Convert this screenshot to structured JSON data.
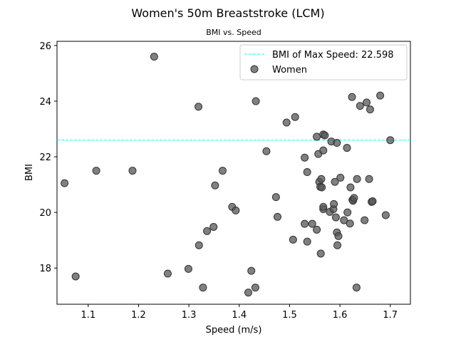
{
  "chart_data": {
    "type": "scatter",
    "title": "Women's 50m Breaststroke (LCM)",
    "subtitle": "BMI vs. Speed",
    "xlabel": "Speed (m/s)",
    "ylabel": "BMI",
    "xlim": [
      1.038,
      1.74
    ],
    "ylim": [
      16.7,
      26.15
    ],
    "xticks": [
      1.1,
      1.2,
      1.3,
      1.4,
      1.5,
      1.6,
      1.7
    ],
    "xtick_labels": [
      "1.1",
      "1.2",
      "1.3",
      "1.4",
      "1.5",
      "1.6",
      "1.7"
    ],
    "yticks": [
      18,
      20,
      22,
      24,
      26
    ],
    "ytick_labels": [
      "18",
      "20",
      "22",
      "24",
      "26"
    ],
    "grid": false,
    "legend_position": "top-right",
    "colors": {
      "points": "#555555",
      "hline": "#00ffff"
    },
    "hline": {
      "y": 22.598,
      "label": "BMI of Max Speed: 22.598"
    },
    "series": [
      {
        "name": "Women",
        "points": [
          [
            1.053,
            21.05
          ],
          [
            1.075,
            17.7
          ],
          [
            1.116,
            21.5
          ],
          [
            1.188,
            21.5
          ],
          [
            1.231,
            25.6
          ],
          [
            1.258,
            17.8
          ],
          [
            1.299,
            17.97
          ],
          [
            1.319,
            23.8
          ],
          [
            1.32,
            18.82
          ],
          [
            1.328,
            17.3
          ],
          [
            1.336,
            19.33
          ],
          [
            1.349,
            19.48
          ],
          [
            1.352,
            20.97
          ],
          [
            1.367,
            21.5
          ],
          [
            1.386,
            20.2
          ],
          [
            1.393,
            20.07
          ],
          [
            1.418,
            17.12
          ],
          [
            1.424,
            17.9
          ],
          [
            1.432,
            17.3
          ],
          [
            1.433,
            24.0
          ],
          [
            1.454,
            22.2
          ],
          [
            1.473,
            20.55
          ],
          [
            1.476,
            19.84
          ],
          [
            1.494,
            23.23
          ],
          [
            1.507,
            19.02
          ],
          [
            1.511,
            23.43
          ],
          [
            1.53,
            19.59
          ],
          [
            1.53,
            21.97
          ],
          [
            1.535,
            18.95
          ],
          [
            1.535,
            21.45
          ],
          [
            1.545,
            19.59
          ],
          [
            1.554,
            19.38
          ],
          [
            1.554,
            22.72
          ],
          [
            1.557,
            22.1
          ],
          [
            1.559,
            21.1
          ],
          [
            1.561,
            20.92
          ],
          [
            1.562,
            18.52
          ],
          [
            1.563,
            21.2
          ],
          [
            1.564,
            20.9
          ],
          [
            1.567,
            22.8
          ],
          [
            1.567,
            20.12
          ],
          [
            1.567,
            20.2
          ],
          [
            1.567,
            22.23
          ],
          [
            1.57,
            22.77
          ],
          [
            1.58,
            20.02
          ],
          [
            1.583,
            22.55
          ],
          [
            1.587,
            20.12
          ],
          [
            1.588,
            20.3
          ],
          [
            1.59,
            21.1
          ],
          [
            1.592,
            19.82
          ],
          [
            1.594,
            19.28
          ],
          [
            1.594,
            22.5
          ],
          [
            1.595,
            18.82
          ],
          [
            1.597,
            19.15
          ],
          [
            1.601,
            21.25
          ],
          [
            1.608,
            19.72
          ],
          [
            1.614,
            22.32
          ],
          [
            1.615,
            20.0
          ],
          [
            1.62,
            19.6
          ],
          [
            1.621,
            20.9
          ],
          [
            1.624,
            24.15
          ],
          [
            1.625,
            20.45
          ],
          [
            1.626,
            20.42
          ],
          [
            1.628,
            20.52
          ],
          [
            1.633,
            17.3
          ],
          [
            1.634,
            21.2
          ],
          [
            1.64,
            23.83
          ],
          [
            1.649,
            19.72
          ],
          [
            1.653,
            23.95
          ],
          [
            1.658,
            21.2
          ],
          [
            1.66,
            23.7
          ],
          [
            1.663,
            20.38
          ],
          [
            1.665,
            20.4
          ],
          [
            1.68,
            24.2
          ],
          [
            1.691,
            19.9
          ],
          [
            1.7,
            22.598
          ]
        ]
      }
    ]
  }
}
